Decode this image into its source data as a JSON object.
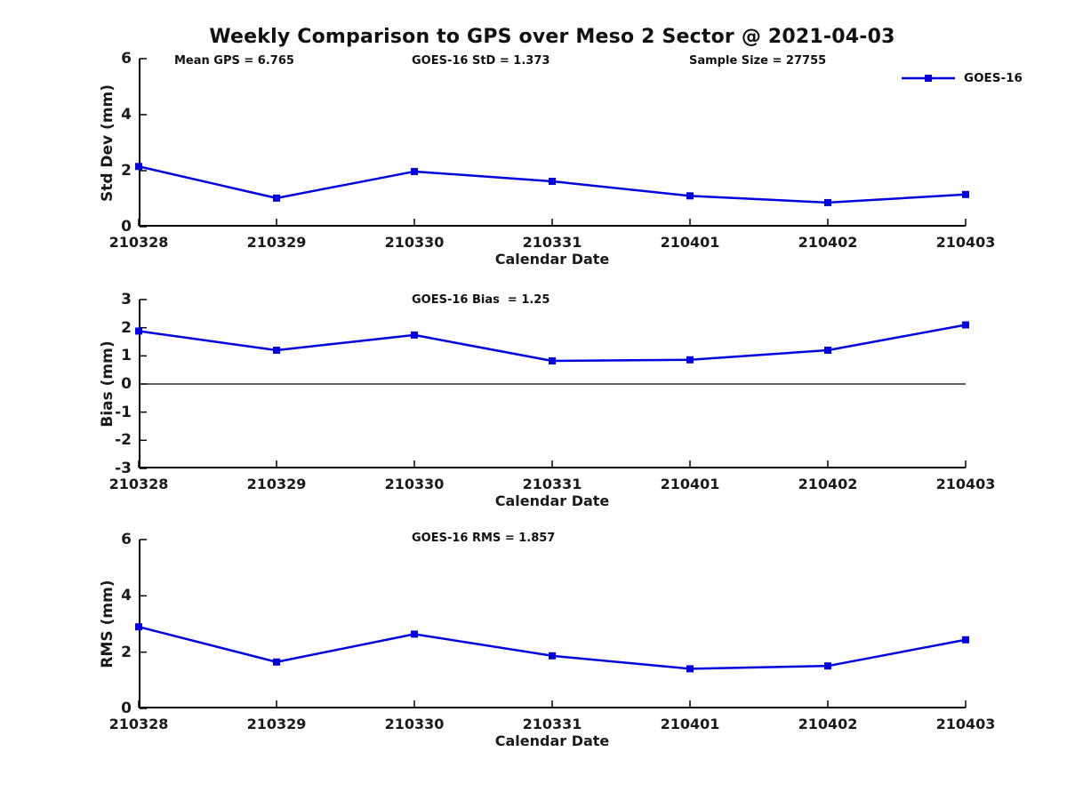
{
  "figure": {
    "title": "Weekly Comparison to GPS over Meso 2 Sector @ 2021-04-03"
  },
  "legend": {
    "label": "GOES-16",
    "series_color": "#0000e0",
    "position": "top-right-outside-first-plot"
  },
  "chart_data": [
    {
      "type": "line",
      "name": "std-dev",
      "title": "",
      "ylabel": "Std Dev (mm)",
      "xlabel": "Calendar Date",
      "ylim": [
        0,
        6
      ],
      "yticks": [
        6,
        4,
        2,
        0
      ],
      "grid": false,
      "categories": [
        "210328",
        "210329",
        "210330",
        "210331",
        "210401",
        "210402",
        "210403"
      ],
      "series": [
        {
          "name": "GOES-16",
          "values": [
            2.15,
            1.02,
            1.97,
            1.62,
            1.1,
            0.86,
            1.15
          ]
        }
      ],
      "annotations": [
        "Mean GPS = 6.765",
        "GOES-16 StD = 1.373",
        "Sample Size = 27755"
      ]
    },
    {
      "type": "line",
      "name": "bias",
      "title": "",
      "ylabel": "Bias (mm)",
      "xlabel": "Calendar Date",
      "ylim": [
        -3,
        3
      ],
      "yticks": [
        3,
        2,
        1,
        0,
        -1,
        -2,
        -3
      ],
      "zero_line": true,
      "grid": false,
      "categories": [
        "210328",
        "210329",
        "210330",
        "210331",
        "210401",
        "210402",
        "210403"
      ],
      "series": [
        {
          "name": "GOES-16",
          "values": [
            1.88,
            1.2,
            1.74,
            0.82,
            0.86,
            1.2,
            2.1
          ]
        }
      ],
      "annotations": [
        "GOES-16 Bias  = 1.25"
      ]
    },
    {
      "type": "line",
      "name": "rms",
      "title": "",
      "ylabel": "RMS (mm)",
      "xlabel": "Calendar Date",
      "ylim": [
        0,
        6
      ],
      "yticks": [
        6,
        4,
        2,
        0
      ],
      "grid": false,
      "categories": [
        "210328",
        "210329",
        "210330",
        "210331",
        "210401",
        "210402",
        "210403"
      ],
      "series": [
        {
          "name": "GOES-16",
          "values": [
            2.9,
            1.65,
            2.64,
            1.87,
            1.41,
            1.51,
            2.44
          ]
        }
      ],
      "annotations": [
        "GOES-16 RMS = 1.857"
      ]
    }
  ]
}
